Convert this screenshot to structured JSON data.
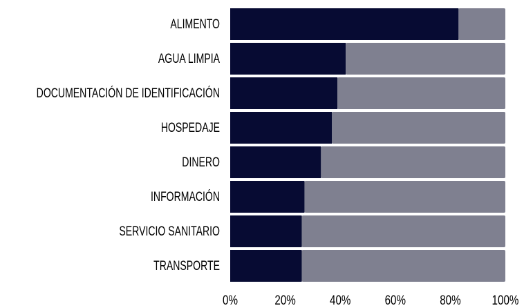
{
  "chart_data": {
    "type": "stacked-bar-horizontal",
    "categories": [
      "ALIMENTO",
      "AGUA LIMPIA",
      "DOCUMENTACIÓN DE IDENTIFICACIÓN",
      "HOSPEDAJE",
      "DINERO",
      "INFORMACIÓN",
      "SERVICIO SANITARIO",
      "TRANSPORTE"
    ],
    "series": [
      {
        "color": "#070b33",
        "values": [
          83,
          42,
          39,
          37,
          33,
          27,
          26,
          26
        ]
      },
      {
        "color": "#7f8090",
        "values": [
          17,
          58,
          61,
          63,
          67,
          73,
          74,
          74
        ]
      }
    ],
    "xlim": [
      0,
      100
    ],
    "xticks": [
      {
        "value": 0,
        "label": "0%"
      },
      {
        "value": 20,
        "label": "20%"
      },
      {
        "value": 40,
        "label": "40%"
      },
      {
        "value": 60,
        "label": "60%"
      },
      {
        "value": 80,
        "label": "80%"
      },
      {
        "value": 100,
        "label": "100%"
      }
    ]
  }
}
